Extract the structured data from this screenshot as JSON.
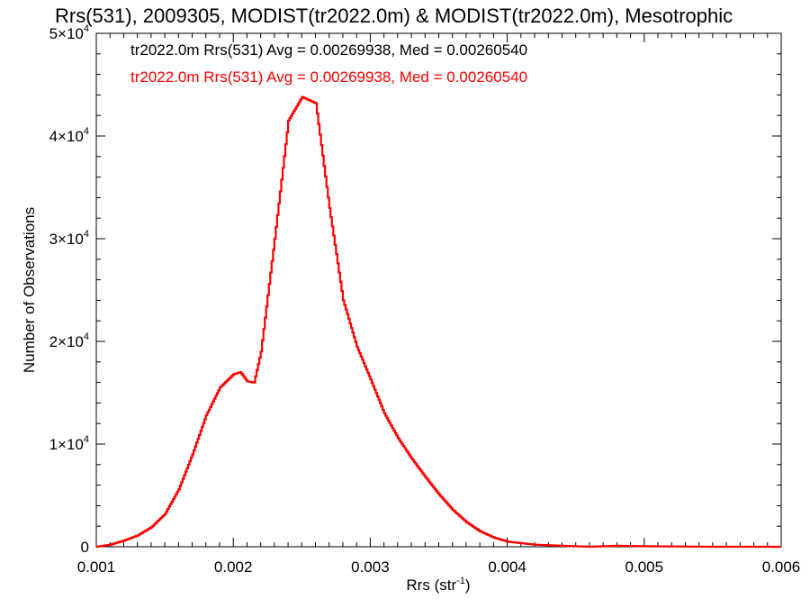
{
  "chart_data": {
    "type": "histogram",
    "title": "Rrs(531), 2009305, MODIST(tr2022.0m) & MODIST(tr2022.0m), Mesotrophic",
    "xlabel": "Rrs (str",
    "xlabel_sup": "-1",
    "xlabel_suffix": ")",
    "ylabel": "Number of Observations",
    "xlim": [
      0.001,
      0.006
    ],
    "ylim": [
      0,
      50000
    ],
    "x_ticks": [
      {
        "value": 0.001,
        "label": "0.001"
      },
      {
        "value": 0.002,
        "label": "0.002"
      },
      {
        "value": 0.003,
        "label": "0.003"
      },
      {
        "value": 0.004,
        "label": "0.004"
      },
      {
        "value": 0.005,
        "label": "0.005"
      },
      {
        "value": 0.006,
        "label": "0.006"
      }
    ],
    "y_ticks": [
      {
        "value": 0,
        "mantissa": "0",
        "exponent": ""
      },
      {
        "value": 10000,
        "mantissa": "1×10",
        "exponent": "4"
      },
      {
        "value": 20000,
        "mantissa": "2×10",
        "exponent": "4"
      },
      {
        "value": 30000,
        "mantissa": "3×10",
        "exponent": "4"
      },
      {
        "value": 40000,
        "mantissa": "4×10",
        "exponent": "4"
      },
      {
        "value": 50000,
        "mantissa": "5×10",
        "exponent": "4"
      }
    ],
    "legend": [
      {
        "text": "tr2022.0m Rrs(531) Avg = 0.00269938, Med = 0.00260540",
        "color": "#000000"
      },
      {
        "text": "tr2022.0m Rrs(531) Avg = 0.00269938, Med = 0.00260540",
        "color": "#ff0000"
      }
    ],
    "series": [
      {
        "color": "#ff0000",
        "x": [
          0.001,
          0.0011,
          0.0012,
          0.0013,
          0.0014,
          0.0015,
          0.0016,
          0.0017,
          0.0018,
          0.0019,
          0.002,
          0.00205,
          0.0021,
          0.00215,
          0.0022,
          0.0023,
          0.0024,
          0.0025,
          0.0026,
          0.0027,
          0.0028,
          0.0029,
          0.003,
          0.0031,
          0.0032,
          0.0033,
          0.0034,
          0.0035,
          0.0036,
          0.0037,
          0.0038,
          0.0039,
          0.004,
          0.0042,
          0.0044,
          0.0046,
          0.0048,
          0.005,
          0.0055,
          0.006
        ],
        "y": [
          0,
          200,
          600,
          1100,
          1900,
          3200,
          5600,
          9000,
          12800,
          15500,
          16800,
          17000,
          16100,
          16000,
          19000,
          30000,
          41500,
          43800,
          43200,
          33000,
          24000,
          19500,
          16300,
          13000,
          10600,
          8600,
          6800,
          5100,
          3600,
          2400,
          1500,
          900,
          500,
          200,
          100,
          0,
          100,
          50,
          0,
          0
        ]
      }
    ]
  }
}
